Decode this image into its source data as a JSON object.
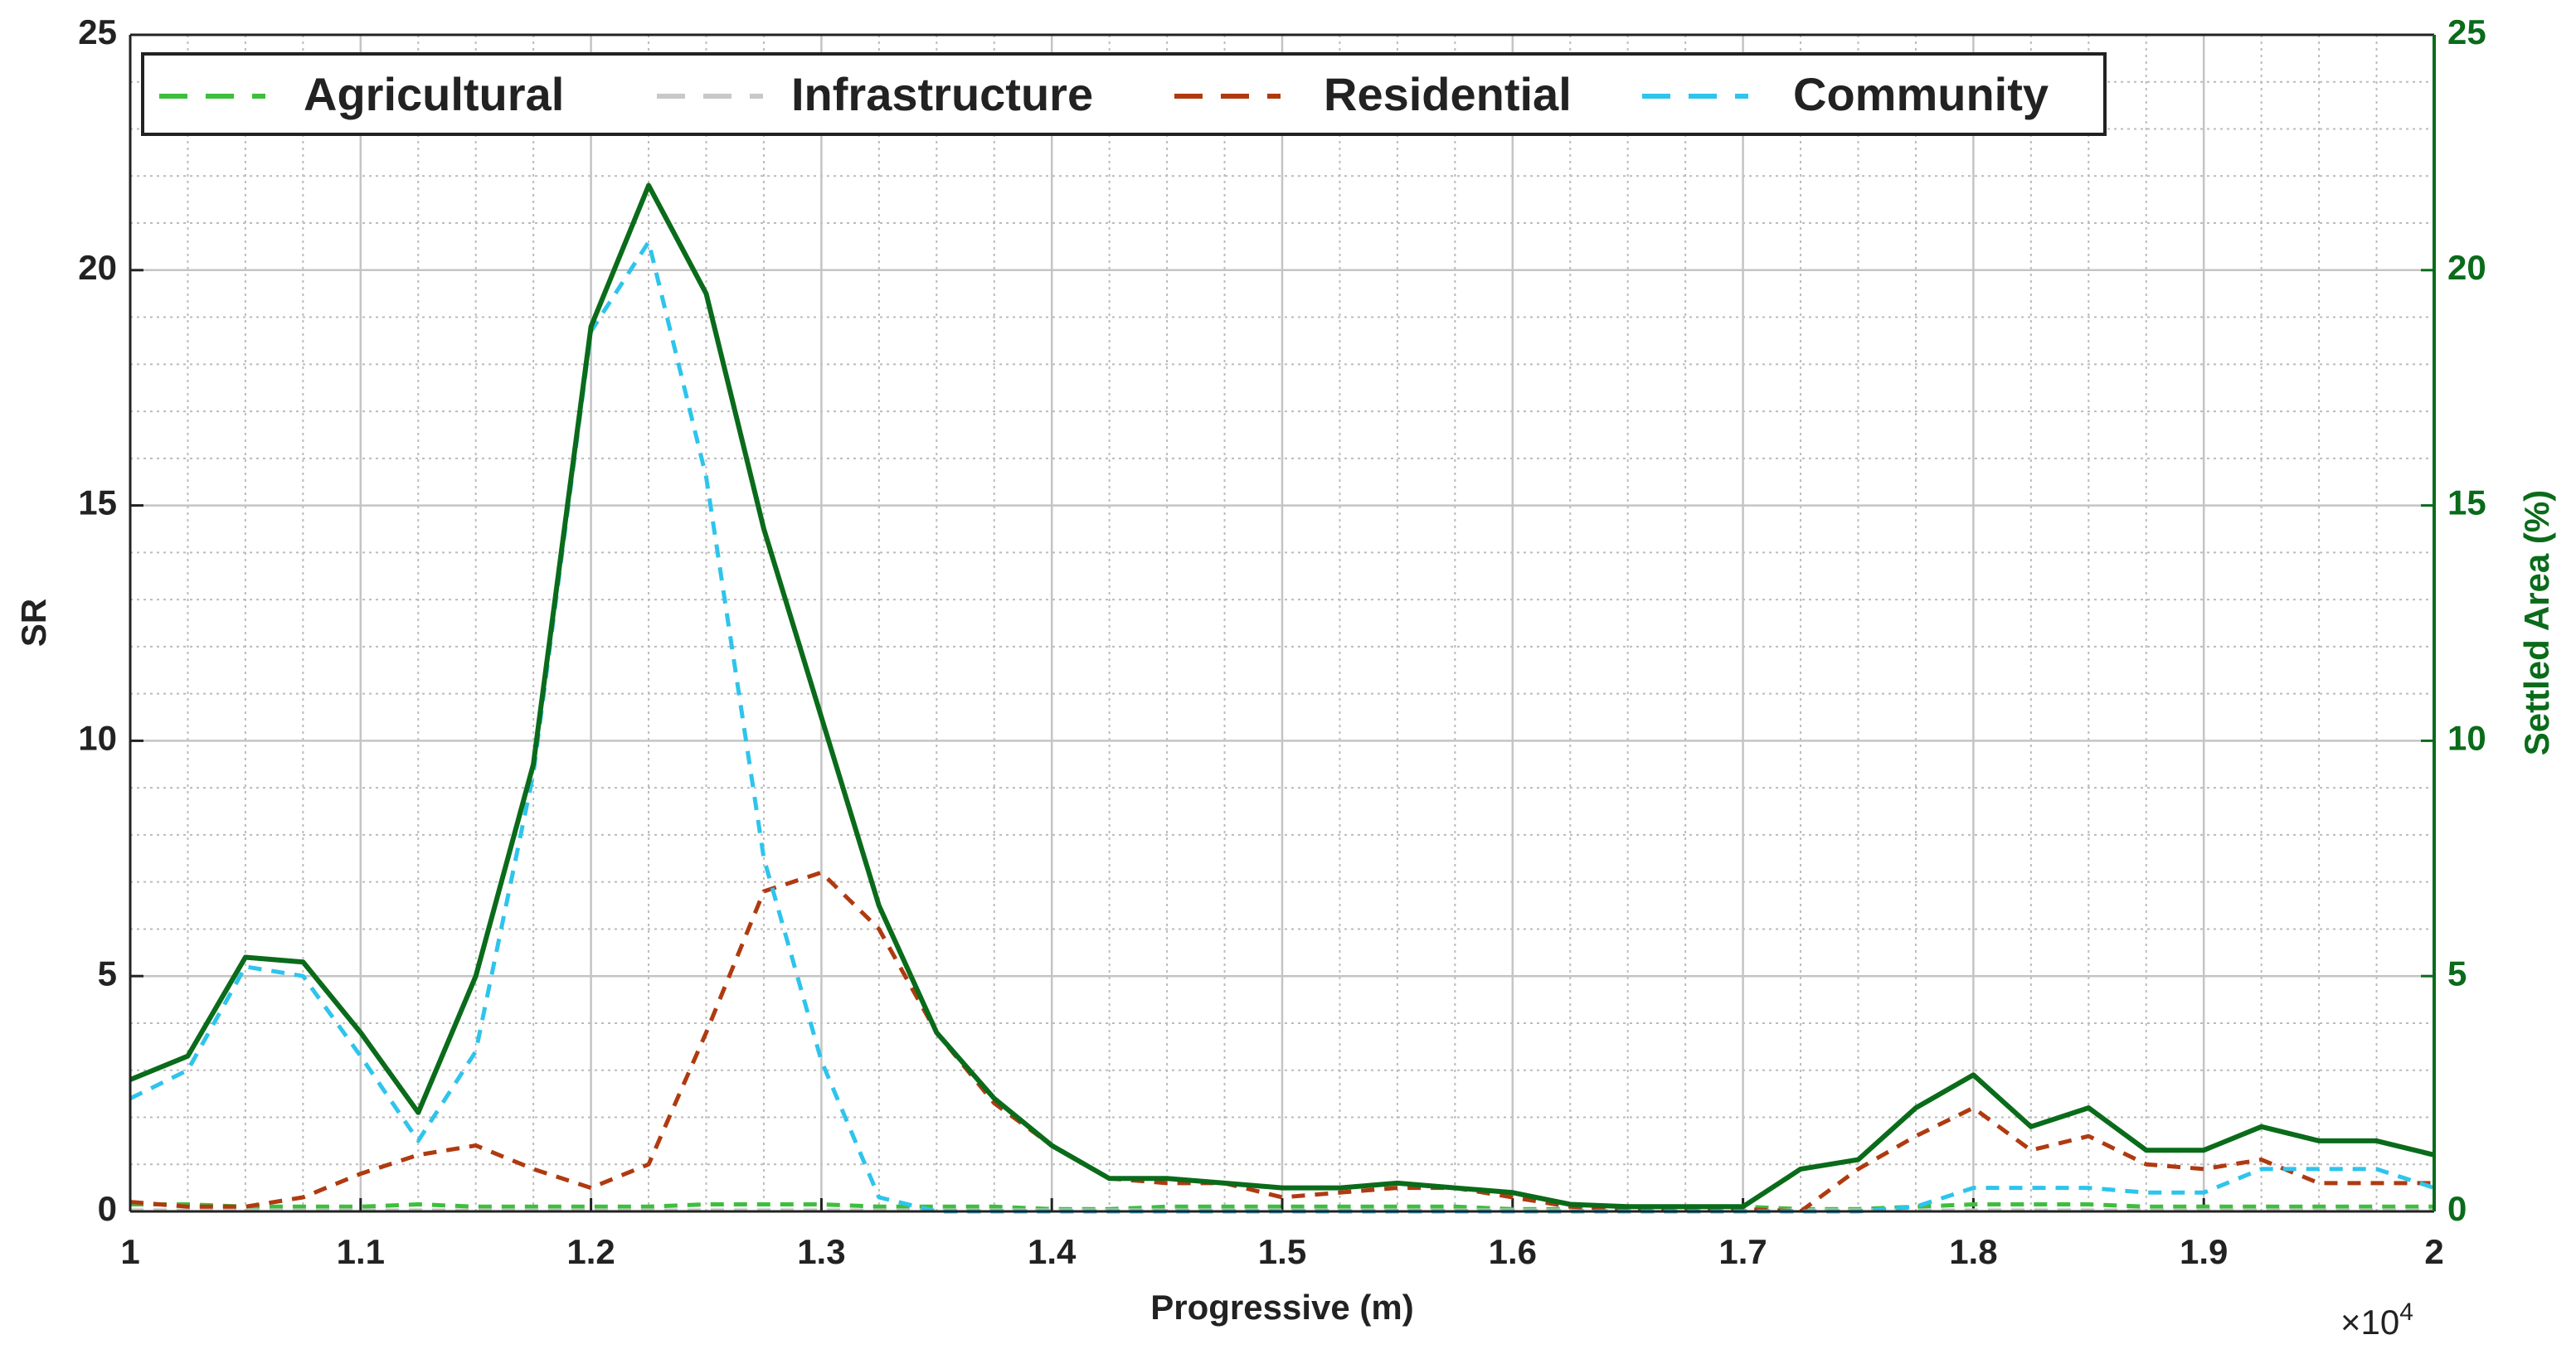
{
  "chart_data": {
    "type": "line",
    "xlabel": "Progressive (m)",
    "ylabel": "SR",
    "y2label": "Settled Area (%)",
    "x_multiplier_base": "×10",
    "x_multiplier_exponent": "4",
    "x": [
      10000,
      10250,
      10500,
      10750,
      11000,
      11250,
      11500,
      11750,
      12000,
      12250,
      12500,
      12750,
      13000,
      13250,
      13500,
      13750,
      14000,
      14250,
      14500,
      14750,
      15000,
      15250,
      15500,
      15750,
      16000,
      16250,
      16500,
      16750,
      17000,
      17250,
      17500,
      17750,
      18000,
      18250,
      18500,
      18750,
      19000,
      19250,
      19500,
      19750,
      20000
    ],
    "series": [
      {
        "name": "Agricultural",
        "color": "#3dbf3d",
        "dashed": true,
        "values": [
          0.15,
          0.15,
          0.1,
          0.1,
          0.1,
          0.15,
          0.1,
          0.1,
          0.1,
          0.1,
          0.15,
          0.15,
          0.15,
          0.1,
          0.1,
          0.1,
          0.05,
          0.05,
          0.1,
          0.1,
          0.1,
          0.1,
          0.1,
          0.1,
          0.05,
          0.05,
          0.05,
          0.05,
          0.1,
          0.05,
          0.05,
          0.1,
          0.15,
          0.15,
          0.15,
          0.1,
          0.1,
          0.1,
          0.1,
          0.1,
          0.1
        ]
      },
      {
        "name": "Infrastructure",
        "color": "#c8c8c8",
        "dashed": true,
        "values": [
          0.02,
          0.02,
          0.02,
          0.02,
          0.02,
          0.02,
          0.02,
          0.02,
          0.02,
          0.02,
          0.02,
          0.02,
          0.02,
          0.02,
          0.02,
          0.02,
          0.02,
          0.02,
          0.02,
          0.02,
          0.02,
          0.02,
          0.02,
          0.02,
          0.02,
          0.02,
          0.02,
          0.02,
          0.02,
          0.02,
          0.02,
          0.02,
          0.02,
          0.02,
          0.02,
          0.02,
          0.02,
          0.02,
          0.02,
          0.02,
          0.02
        ]
      },
      {
        "name": "Residential",
        "color": "#b03a10",
        "dashed": true,
        "values": [
          0.2,
          0.1,
          0.1,
          0.3,
          0.8,
          1.2,
          1.4,
          0.9,
          0.5,
          1.0,
          3.8,
          6.8,
          7.2,
          6.0,
          3.8,
          2.3,
          1.4,
          0.7,
          0.6,
          0.6,
          0.3,
          0.4,
          0.5,
          0.5,
          0.3,
          0.1,
          0.05,
          0.05,
          0.05,
          0,
          0.9,
          1.6,
          2.2,
          1.3,
          1.6,
          1.0,
          0.9,
          1.1,
          0.6,
          0.6,
          0.6
        ]
      },
      {
        "name": "Community",
        "color": "#2ec4ec",
        "dashed": true,
        "values": [
          2.4,
          3.0,
          5.2,
          5.0,
          3.3,
          1.5,
          3.4,
          9.3,
          18.7,
          20.6,
          15.6,
          7.5,
          3.2,
          0.3,
          0,
          0,
          0,
          0,
          0,
          0,
          0,
          0,
          0,
          0,
          0,
          0,
          0,
          0,
          0,
          0,
          0,
          0.1,
          0.5,
          0.5,
          0.5,
          0.4,
          0.4,
          0.9,
          0.9,
          0.9,
          0.5
        ]
      },
      {
        "color": "#0a6b1a",
        "dashed": false,
        "axis": "y2",
        "values": [
          2.8,
          3.3,
          5.4,
          5.3,
          3.8,
          2.1,
          5.0,
          9.5,
          18.8,
          21.8,
          19.5,
          14.5,
          10.5,
          6.5,
          3.8,
          2.4,
          1.4,
          0.7,
          0.7,
          0.6,
          0.5,
          0.5,
          0.6,
          0.5,
          0.4,
          0.15,
          0.1,
          0.1,
          0.1,
          0.9,
          1.1,
          2.2,
          2.9,
          1.8,
          2.2,
          1.3,
          1.3,
          1.8,
          1.5,
          1.5,
          1.2
        ]
      }
    ],
    "xlim": [
      10000,
      20000
    ],
    "xticks": [
      {
        "value": 10000,
        "label": "1"
      },
      {
        "value": 11000,
        "label": "1.1"
      },
      {
        "value": 12000,
        "label": "1.2"
      },
      {
        "value": 13000,
        "label": "1.3"
      },
      {
        "value": 14000,
        "label": "1.4"
      },
      {
        "value": 15000,
        "label": "1.5"
      },
      {
        "value": 16000,
        "label": "1.6"
      },
      {
        "value": 17000,
        "label": "1.7"
      },
      {
        "value": 18000,
        "label": "1.8"
      },
      {
        "value": 19000,
        "label": "1.9"
      },
      {
        "value": 20000,
        "label": "2"
      }
    ],
    "ylim": [
      0,
      25
    ],
    "yticks": [
      0,
      5,
      10,
      15,
      20,
      25
    ],
    "y2lim": [
      0,
      25
    ],
    "y2ticks": [
      0,
      5,
      10,
      15,
      20,
      25
    ],
    "y2color": "#0a6b1a",
    "grid": true,
    "minor_grid": true,
    "legend": "upper left"
  }
}
